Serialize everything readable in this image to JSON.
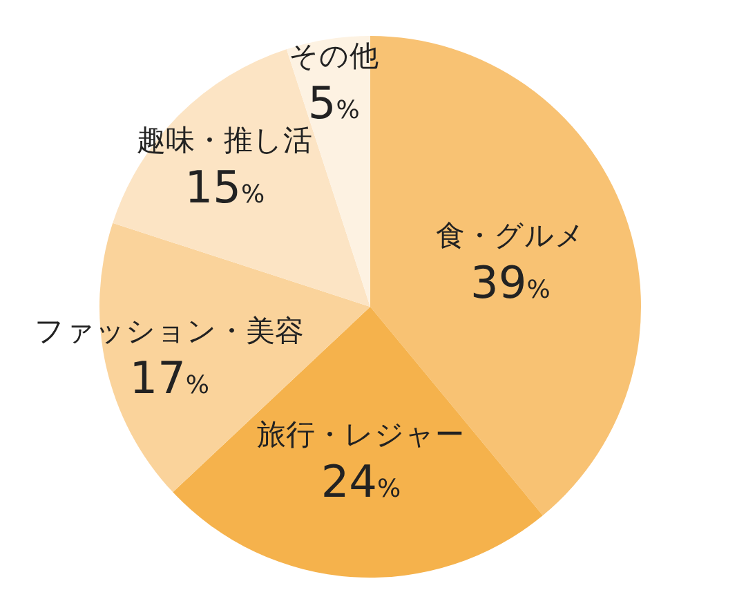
{
  "chart_data": {
    "type": "pie",
    "categories": [
      "食・グルメ",
      "旅行・レジャー",
      "ファッション・美容",
      "趣味・推し活",
      "その他"
    ],
    "values": [
      39,
      24,
      17,
      15,
      5
    ],
    "colors": [
      "#f8c273",
      "#f5b24c",
      "#fad39b",
      "#fce4c4",
      "#fdf2e2"
    ],
    "value_labels": [
      "39%",
      "24%",
      "17%",
      "15%",
      "5%"
    ],
    "legend": false
  }
}
